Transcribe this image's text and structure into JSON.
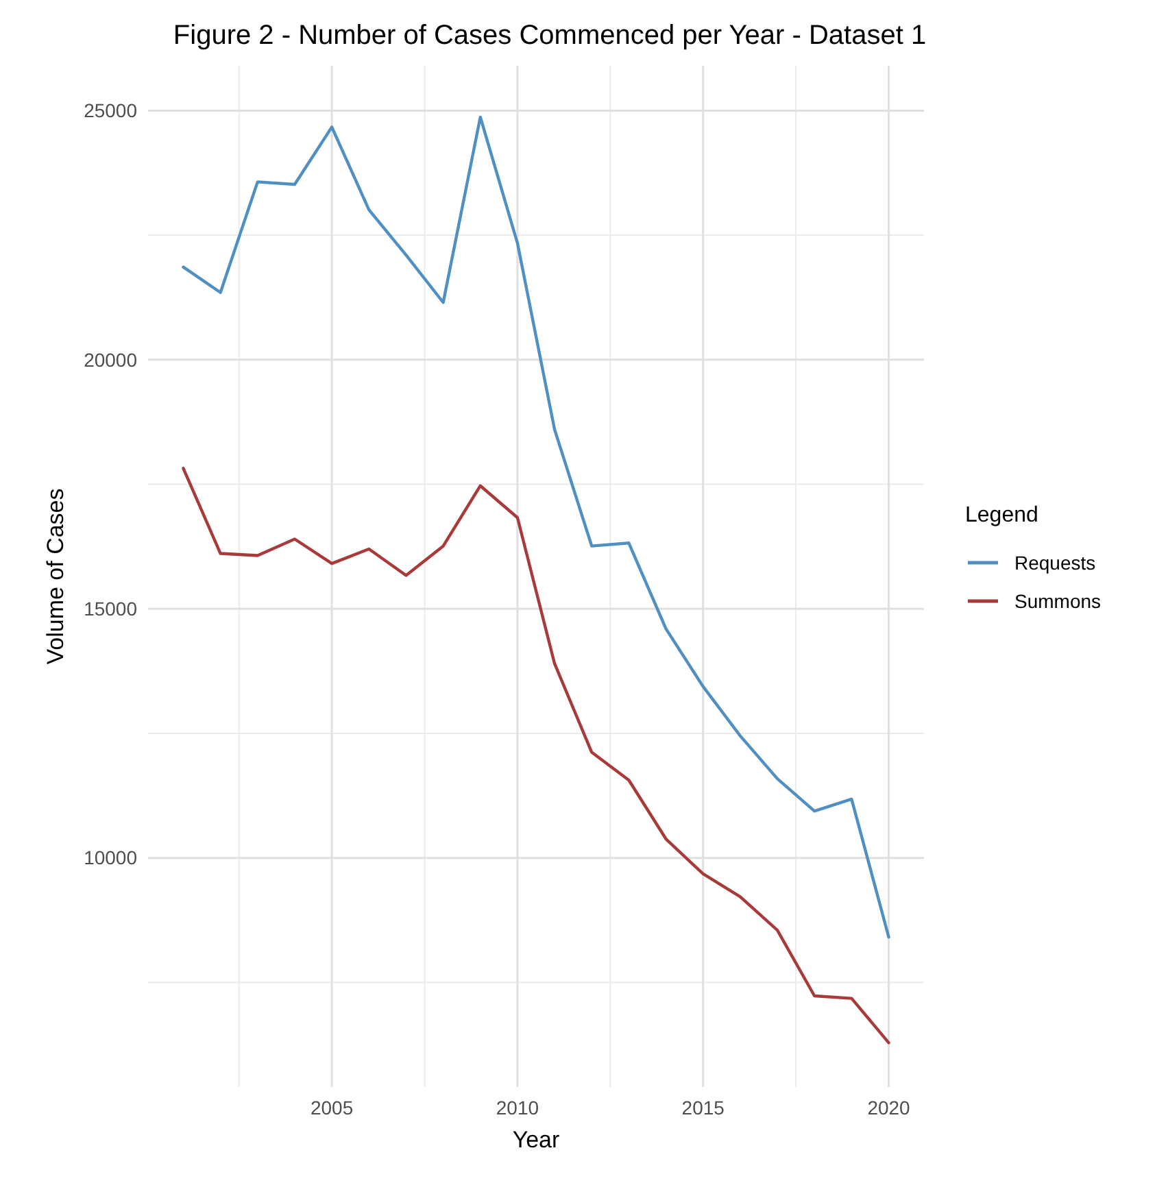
{
  "chart_data": {
    "type": "line",
    "title": "Figure 2 - Number of Cases Commenced per Year - Dataset 1",
    "xlabel": "Year",
    "ylabel": "Volume of Cases",
    "legend_title": "Legend",
    "legend": "right",
    "grid": true,
    "x": [
      2001,
      2002,
      2003,
      2004,
      2005,
      2006,
      2007,
      2008,
      2009,
      2010,
      2011,
      2012,
      2013,
      2014,
      2015,
      2016,
      2017,
      2018,
      2019,
      2020
    ],
    "series": [
      {
        "name": "Requests",
        "color": "#4f8fc2",
        "values": [
          21860,
          21350,
          23570,
          23520,
          24670,
          23010,
          22100,
          21150,
          24870,
          22340,
          18600,
          16260,
          16320,
          14600,
          13440,
          12450,
          11590,
          10940,
          11180,
          8410
        ]
      },
      {
        "name": "Summons",
        "color": "#a83a3a",
        "values": [
          17820,
          16110,
          16070,
          16400,
          15910,
          16200,
          15670,
          16260,
          17470,
          16830,
          13900,
          12120,
          11560,
          10380,
          9680,
          9220,
          8550,
          7230,
          7180,
          6290
        ]
      }
    ],
    "xlim": [
      2000.05,
      2020.95
    ],
    "xticks": [
      2005,
      2010,
      2015,
      2020
    ],
    "ylim": [
      5400,
      25900
    ],
    "yticks": [
      10000,
      15000,
      20000,
      25000
    ]
  }
}
